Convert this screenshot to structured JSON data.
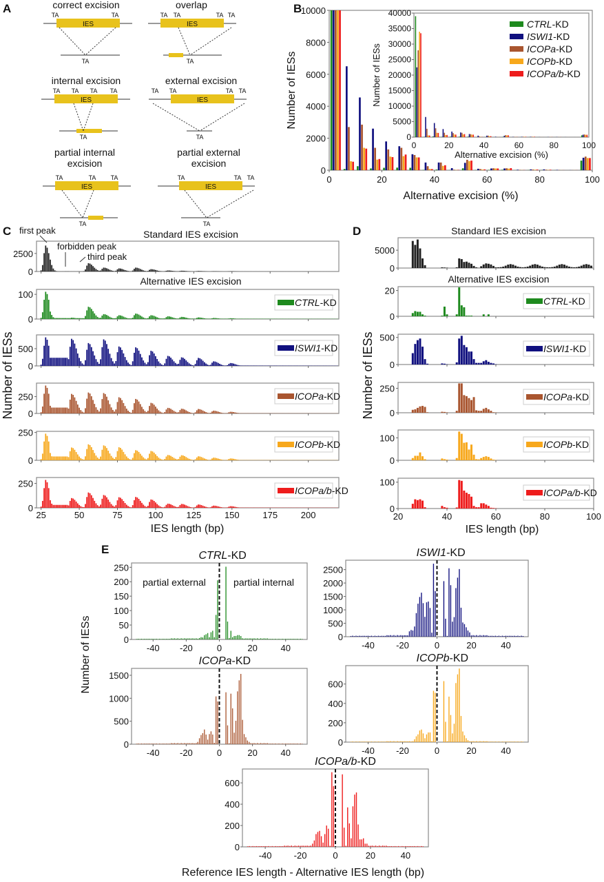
{
  "panel_labels": [
    "A",
    "B",
    "C",
    "D",
    "E"
  ],
  "colors": {
    "standard": "#222222",
    "CTRL": "#1e8a1e",
    "ISWI1": "#10107f",
    "ICOPa": "#a9552f",
    "ICOPb": "#f7a81c",
    "ICOPab": "#ee1c1c",
    "ies_box": "#e8c21c",
    "ta_red": "#cc3344"
  },
  "panelA": {
    "diagrams": [
      {
        "title": "correct excision",
        "top_ta": [
          "TA",
          "TA"
        ],
        "red_ta": [],
        "bottom_ta": "TA",
        "bottom_ta_red": false
      },
      {
        "title": "overlap",
        "top_ta": [
          "TA",
          "TA"
        ],
        "red_ta": [
          "TA",
          "TA"
        ],
        "bottom_ta": "TA",
        "bottom_ta_red": true
      },
      {
        "title": "internal excision",
        "top_ta": [
          "TA",
          "TA"
        ],
        "red_ta": [
          "TA",
          "TA"
        ],
        "bottom_ta": "TA",
        "bottom_ta_red": true
      },
      {
        "title": "external excision",
        "top_ta": [
          "TA",
          "TA"
        ],
        "red_ta": [
          "TA",
          "TA"
        ],
        "bottom_ta": "TA",
        "bottom_ta_red": true
      },
      {
        "title": "partial internal excision",
        "top_ta": [
          "TA",
          "TA"
        ],
        "red_ta": [
          "TA"
        ],
        "bottom_ta": "TA",
        "bottom_ta_red": true
      },
      {
        "title": "partial external excision",
        "top_ta": [
          "TA",
          "TA"
        ],
        "red_ta": [
          "TA"
        ],
        "bottom_ta": "TA",
        "bottom_ta_red": true
      }
    ],
    "box_label": "IES"
  },
  "chart_data": [
    {
      "id": "B-main",
      "type": "bar",
      "xlabel": "Alternative excision (%)",
      "ylabel": "Number of IESs",
      "xlim": [
        0,
        100
      ],
      "ylim": [
        0,
        10000
      ],
      "xticks": [
        0,
        20,
        40,
        60,
        80,
        100
      ],
      "yticks": [
        0,
        2000,
        4000,
        6000,
        8000,
        10000
      ],
      "categories": [
        2.5,
        7.5,
        12.5,
        17.5,
        22.5,
        27.5,
        32.5,
        37.5,
        42.5,
        47.5,
        52.5,
        57.5,
        62.5,
        67.5,
        72.5,
        77.5,
        82.5,
        87.5,
        92.5,
        97.5
      ],
      "series": [
        {
          "name": "CTRL-KD",
          "key": "CTRL",
          "values": [
            39000,
            80,
            250,
            110,
            150,
            160,
            150,
            20,
            40,
            10,
            120,
            10,
            20,
            30,
            5,
            10,
            10,
            5,
            0,
            600
          ]
        },
        {
          "name": "ISWI1-KD",
          "key": "ISWI1",
          "values": [
            22500,
            6500,
            4550,
            2600,
            1800,
            1500,
            1000,
            480,
            480,
            130,
            460,
            90,
            110,
            110,
            30,
            50,
            50,
            20,
            5,
            780
          ]
        },
        {
          "name": "ICOPa-KD",
          "key": "ICOPa",
          "values": [
            28000,
            2700,
            2850,
            1400,
            1300,
            1400,
            950,
            250,
            480,
            30,
            650,
            70,
            120,
            120,
            20,
            40,
            30,
            10,
            5,
            850
          ]
        },
        {
          "name": "ICOPb-KD",
          "key": "ICOPb",
          "values": [
            34000,
            560,
            1400,
            660,
            850,
            880,
            800,
            80,
            270,
            20,
            570,
            40,
            110,
            100,
            10,
            30,
            20,
            5,
            5,
            760
          ]
        },
        {
          "name": "ICOPa/b-KD",
          "key": "ICOPab",
          "values": [
            33500,
            530,
            1350,
            700,
            820,
            980,
            800,
            70,
            310,
            20,
            600,
            50,
            110,
            130,
            10,
            40,
            30,
            5,
            5,
            760
          ]
        }
      ],
      "legend": [
        "CTRL-KD",
        "ISWI1-KD",
        "ICOPa-KD",
        "ICOPb-KD",
        "ICOPa/b-KD"
      ],
      "legend_italic_part": [
        "CTRL",
        "ISWI1",
        "ICOPa",
        "ICOPb",
        "ICOPa/b"
      ],
      "legend_suffix": "-KD",
      "legend_position": "top-right (inside inset)"
    },
    {
      "id": "B-inset",
      "type": "bar",
      "xlabel": "Alternative excision (%)",
      "ylabel": "Number of IESs",
      "xlim": [
        0,
        100
      ],
      "ylim": [
        0,
        40000
      ],
      "xticks": [
        0,
        20,
        40,
        60,
        80,
        100
      ],
      "yticks": [
        0,
        5000,
        10000,
        15000,
        20000,
        25000,
        30000,
        35000,
        40000
      ],
      "note": "Same series as B-main shown at full scale"
    },
    {
      "id": "C",
      "type": "bar",
      "title_standard": "Standard IES excision",
      "title_alternative": "Alternative IES excision",
      "xlabel": "IES length (bp)",
      "ylabel": "Number of IESs",
      "xlim": [
        22,
        220
      ],
      "xticks": [
        25,
        50,
        75,
        100,
        125,
        150,
        175,
        200
      ],
      "annotations": [
        "first peak",
        "forbidden peak",
        "third peak"
      ],
      "rows": [
        {
          "name": "Standard",
          "key": "standard",
          "legend": "",
          "ymax": 4200,
          "yticks": [
            0,
            2500
          ]
        },
        {
          "name": "CTRL-KD",
          "key": "CTRL",
          "legend_italic": "CTRL",
          "ymax": 120,
          "yticks": [
            0,
            100
          ]
        },
        {
          "name": "ISWI1-KD",
          "key": "ISWI1",
          "legend_italic": "ISWI1",
          "ymax": 900,
          "yticks": [
            0,
            500
          ]
        },
        {
          "name": "ICOPa-KD",
          "key": "ICOPa",
          "legend_italic": "ICOPa",
          "ymax": 450,
          "yticks": [
            0,
            250
          ]
        },
        {
          "name": "ICOPb-KD",
          "key": "ICOPb",
          "legend_italic": "ICOPb",
          "ymax": 260,
          "yticks": [
            0,
            250
          ]
        },
        {
          "name": "ICOPa/b-KD",
          "key": "ICOPab",
          "legend_italic": "ICOPa/b",
          "ymax": 310,
          "yticks": [
            0,
            250
          ]
        }
      ],
      "peak_profile": {
        "peaks_bp": [
          28,
          45,
          56,
          66,
          76,
          87,
          97,
          108,
          117,
          128,
          138,
          149
        ],
        "standard_rel": [
          1.0,
          0.0,
          0.32,
          0.15,
          0.12,
          0.15,
          0.09,
          0.04,
          0.03,
          0.02,
          0.01,
          0.01
        ],
        "CTRL_rel": [
          1.0,
          0.05,
          0.45,
          0.18,
          0.14,
          0.2,
          0.14,
          0.1,
          0.08,
          0.06,
          0.04,
          0.03
        ],
        "ISWI1_rel": [
          1.0,
          0.95,
          0.8,
          0.93,
          0.68,
          0.65,
          0.53,
          0.35,
          0.3,
          0.28,
          0.16,
          0.1
        ],
        "ICOPa_rel": [
          1.0,
          0.7,
          0.75,
          0.73,
          0.58,
          0.52,
          0.38,
          0.2,
          0.17,
          0.16,
          0.1,
          0.06
        ],
        "ICOPb_rel": [
          1.0,
          0.48,
          0.6,
          0.56,
          0.49,
          0.38,
          0.35,
          0.2,
          0.19,
          0.15,
          0.1,
          0.07
        ],
        "ICOPab_rel": [
          1.0,
          0.35,
          0.55,
          0.46,
          0.38,
          0.39,
          0.3,
          0.15,
          0.14,
          0.12,
          0.08,
          0.06
        ]
      }
    },
    {
      "id": "D",
      "type": "bar",
      "title_standard": "Standard IES excision",
      "title_alternative": "Alternative IES excision",
      "xlabel": "IES length (bp)",
      "ylabel": "Number of IESs",
      "xlim": [
        20,
        100
      ],
      "xticks": [
        20,
        40,
        60,
        80,
        100
      ],
      "x": [
        26,
        27,
        28,
        29,
        30,
        31,
        32,
        38,
        39,
        40,
        44,
        45,
        46,
        47,
        48,
        49,
        50,
        51,
        52,
        53,
        54,
        55,
        56,
        57,
        58,
        59,
        60
      ],
      "rows": [
        {
          "name": "Standard",
          "key": "standard",
          "ymax": 8500,
          "yticks": [
            0,
            5000
          ],
          "values": [
            7600,
            6500,
            8000,
            5500,
            2700,
            800,
            0,
            200,
            150,
            100,
            200,
            2700,
            2500,
            1700,
            1800,
            1500,
            1200,
            600,
            200,
            50,
            500,
            1000,
            1300,
            1200,
            1000,
            600,
            200
          ]
        },
        {
          "name": "CTRL-KD",
          "key": "CTRL",
          "legend_italic": "CTRL",
          "ymax": 23,
          "yticks": [
            0,
            20
          ],
          "values": [
            2.5,
            4,
            3.5,
            3.5,
            1.5,
            0.5,
            0,
            0.5,
            7.5,
            1.5,
            1.5,
            22.5,
            8.5,
            7,
            0.5,
            0.5,
            0.5,
            0,
            0,
            0,
            0,
            1.5,
            0,
            1.5,
            0,
            0,
            0
          ]
        },
        {
          "name": "ISWI1-KD",
          "key": "ISWI1",
          "legend_italic": "ISWI1",
          "ymax": 560,
          "yticks": [
            0,
            500
          ],
          "values": [
            210,
            380,
            450,
            480,
            330,
            100,
            15,
            20,
            15,
            5,
            40,
            480,
            530,
            360,
            320,
            240,
            240,
            100,
            30,
            30,
            30,
            60,
            80,
            50,
            30,
            20,
            5
          ]
        },
        {
          "name": "ICOPa-KD",
          "key": "ICOPa",
          "legend_italic": "ICOPa",
          "ymax": 310,
          "yticks": [
            0,
            250
          ],
          "values": [
            30,
            35,
            50,
            65,
            70,
            60,
            5,
            10,
            8,
            4,
            20,
            300,
            300,
            180,
            170,
            150,
            130,
            160,
            25,
            20,
            20,
            40,
            50,
            35,
            20,
            5,
            3
          ]
        },
        {
          "name": "ICOPb-KD",
          "key": "ICOPb",
          "legend_italic": "ICOPb",
          "ymax": 135,
          "yticks": [
            0,
            100
          ],
          "values": [
            10,
            20,
            20,
            35,
            18,
            5,
            0,
            8,
            5,
            3,
            10,
            128,
            118,
            78,
            80,
            48,
            70,
            25,
            5,
            4,
            10,
            15,
            18,
            15,
            8,
            3,
            1
          ]
        },
        {
          "name": "ICOPa/b-KD",
          "key": "ICOPab",
          "legend_italic": "ICOPa/b",
          "ymax": 115,
          "yticks": [
            0,
            100
          ],
          "values": [
            18,
            35,
            32,
            35,
            30,
            5,
            0,
            10,
            5,
            3,
            4,
            108,
            105,
            68,
            60,
            55,
            45,
            10,
            5,
            5,
            20,
            20,
            15,
            10,
            3,
            2,
            1
          ]
        }
      ]
    },
    {
      "id": "E",
      "type": "bar",
      "xlabel": "Reference IES length - Alternative IES length (bp)",
      "ylabel": "Number of IESs",
      "xlim": [
        -53,
        53
      ],
      "xticks": [
        -40,
        -20,
        0,
        20,
        40
      ],
      "annotations": [
        "partial external",
        "partial internal"
      ],
      "reference_line_x": 0,
      "subplots": [
        {
          "title_italic": "CTRL",
          "title_suffix": "-KD",
          "key": "CTRL",
          "ymax": 265,
          "yticks": [
            0,
            50,
            100,
            150,
            200,
            250
          ],
          "peaks": {
            "-12": 5,
            "-11": 8,
            "-10": 7,
            "-9": 15,
            "-8": 18,
            "-7": 22,
            "-6": 8,
            "-5": 25,
            "-4": 30,
            "-3": 8,
            "-2": 85,
            "-1": 205,
            "0": 0,
            "1": 0,
            "2": 0,
            "3": 0,
            "4": 252,
            "5": 62,
            "6": 5,
            "7": 30,
            "8": 8,
            "9": 12,
            "10": 12,
            "11": 15,
            "12": 15,
            "13": 12
          },
          "background": 4
        },
        {
          "title_italic": "ISWI1",
          "title_suffix": "-KD",
          "key": "ISWI1",
          "ymax": 2850,
          "yticks": [
            0,
            500,
            1000,
            1500,
            2000,
            2500
          ],
          "peaks": {
            "-16": 200,
            "-15": 250,
            "-14": 230,
            "-13": 380,
            "-12": 880,
            "-11": 1230,
            "-10": 1480,
            "-9": 1640,
            "-8": 1250,
            "-7": 740,
            "-6": 1280,
            "-5": 1310,
            "-4": 1070,
            "-3": 150,
            "-2": 2720,
            "-1": 1700,
            "0": 0,
            "1": 0,
            "2": 0,
            "3": 0,
            "4": 2070,
            "5": 670,
            "6": 30,
            "7": 2550,
            "8": 1920,
            "9": 560,
            "10": 730,
            "11": 1810,
            "12": 2200,
            "13": 2520,
            "14": 1080,
            "15": 530,
            "16": 470,
            "17": 350,
            "18": 230,
            "19": 160
          },
          "background": 60
        },
        {
          "title_italic": "ICOPa",
          "title_suffix": "-KD",
          "key": "ICOPa",
          "ymax": 1650,
          "yticks": [
            0,
            500,
            1000,
            1500
          ],
          "peaks": {
            "-13": 50,
            "-12": 130,
            "-11": 200,
            "-10": 240,
            "-9": 320,
            "-8": 210,
            "-7": 100,
            "-6": 220,
            "-5": 280,
            "-4": 210,
            "-3": 30,
            "-2": 1040,
            "-1": 930,
            "0": 0,
            "1": 0,
            "2": 0,
            "3": 0,
            "4": 1130,
            "5": 410,
            "6": 20,
            "7": 1100,
            "8": 780,
            "9": 250,
            "10": 510,
            "11": 1150,
            "12": 1390,
            "13": 1530,
            "14": 530,
            "15": 220,
            "16": 150,
            "17": 80,
            "18": 50
          },
          "background": 25
        },
        {
          "title_italic": "ICOPb",
          "title_suffix": "-KD",
          "key": "ICOPb",
          "ymax": 790,
          "yticks": [
            0,
            200,
            400,
            600
          ],
          "peaks": {
            "-13": 30,
            "-12": 60,
            "-11": 80,
            "-10": 120,
            "-9": 130,
            "-8": 90,
            "-7": 40,
            "-6": 80,
            "-5": 100,
            "-4": 100,
            "-3": 10,
            "-2": 530,
            "-1": 510,
            "0": 0,
            "1": 0,
            "2": 0,
            "3": 0,
            "4": 630,
            "5": 210,
            "6": 10,
            "7": 470,
            "8": 280,
            "9": 90,
            "10": 190,
            "11": 610,
            "12": 700,
            "13": 760,
            "14": 270,
            "15": 110,
            "16": 70,
            "17": 40,
            "18": 20
          },
          "background": 10
        },
        {
          "title_italic": "ICOPa/b",
          "title_suffix": "-KD",
          "key": "ICOPab",
          "ymax": 730,
          "yticks": [
            0,
            200,
            400,
            600
          ],
          "peaks": {
            "-13": 30,
            "-12": 60,
            "-11": 120,
            "-10": 140,
            "-9": 150,
            "-8": 100,
            "-7": 40,
            "-6": 120,
            "-5": 200,
            "-4": 170,
            "-3": 10,
            "-2": 700,
            "-1": 570,
            "0": 0,
            "1": 0,
            "2": 0,
            "3": 0,
            "4": 680,
            "5": 180,
            "6": 10,
            "7": 370,
            "8": 220,
            "9": 80,
            "10": 380,
            "11": 490,
            "12": 510,
            "13": 210,
            "14": 70,
            "15": 70,
            "16": 80,
            "17": 30,
            "18": 30
          },
          "background": 12
        }
      ]
    }
  ]
}
